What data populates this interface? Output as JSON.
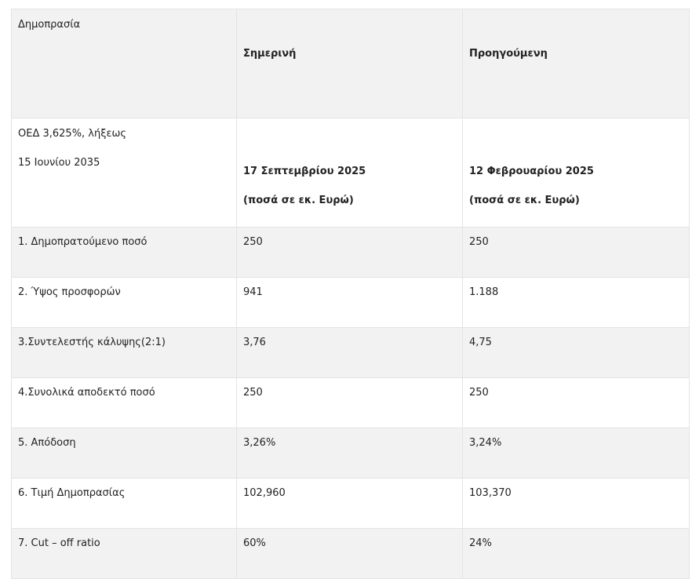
{
  "header": {
    "label": "Δημοπρασία",
    "current": "Σημερινή",
    "previous": "Προηγούμενη"
  },
  "bond": {
    "line1": "ΟΕΔ 3,625%, λήξεως",
    "line2": "15 Ιουνίου 2035",
    "current_date": "17 Σεπτεμβρίου 2025",
    "current_unit": "(ποσά σε εκ. Ευρώ)",
    "previous_date": "12 Φεβρουαρίου 2025",
    "previous_unit": "(ποσά σε εκ. Ευρώ)"
  },
  "rows": [
    {
      "label": "1. Δημοπρατούμενο ποσό",
      "current": "250",
      "previous": "250"
    },
    {
      "label": "2. Ύψος προσφορών",
      "current": "941",
      "previous": "1.188"
    },
    {
      "label": "3.Συντελεστής κάλυψης(2:1)",
      "current": "3,76",
      "previous": "4,75"
    },
    {
      "label": "4.Συνολικά αποδεκτό ποσό",
      "current": "250",
      "previous": "250"
    },
    {
      "label": "5. Απόδοση",
      "current": "3,26%",
      "previous": "3,24%"
    },
    {
      "label": "6. Τιμή Δημοπρασίας",
      "current": "102,960",
      "previous": "103,370"
    },
    {
      "label": "7. Cut – off ratio",
      "current": "60%",
      "previous": "24%"
    }
  ]
}
